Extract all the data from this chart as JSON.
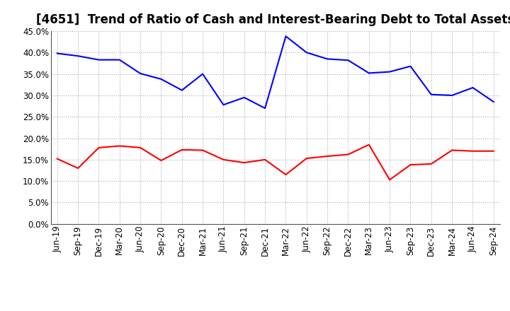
{
  "title": "[4651]  Trend of Ratio of Cash and Interest-Bearing Debt to Total Assets",
  "labels": [
    "Jun-19",
    "Sep-19",
    "Dec-19",
    "Mar-20",
    "Jun-20",
    "Sep-20",
    "Dec-20",
    "Mar-21",
    "Jun-21",
    "Sep-21",
    "Dec-21",
    "Mar-22",
    "Jun-22",
    "Sep-22",
    "Dec-22",
    "Mar-23",
    "Jun-23",
    "Sep-23",
    "Dec-23",
    "Mar-24",
    "Jun-24",
    "Sep-24"
  ],
  "cash": [
    15.2,
    13.0,
    17.8,
    18.2,
    17.8,
    14.8,
    17.3,
    17.2,
    15.0,
    14.3,
    15.0,
    11.5,
    15.3,
    15.8,
    16.2,
    18.5,
    10.3,
    13.8,
    14.0,
    17.2,
    17.0,
    17.0
  ],
  "debt": [
    39.8,
    39.2,
    38.3,
    38.3,
    35.1,
    33.8,
    31.2,
    35.0,
    27.8,
    29.5,
    27.0,
    43.8,
    40.0,
    38.5,
    38.2,
    35.2,
    35.5,
    36.8,
    30.2,
    30.0,
    31.8,
    28.5
  ],
  "cash_color": "#ff0000",
  "debt_color": "#0000ff",
  "ylim": [
    0,
    45
  ],
  "yticks": [
    0,
    5,
    10,
    15,
    20,
    25,
    30,
    35,
    40,
    45
  ],
  "background_color": "#ffffff",
  "grid_color": "#aaaaaa",
  "title_fontsize": 12,
  "tick_fontsize": 8.5,
  "legend_fontsize": 9
}
